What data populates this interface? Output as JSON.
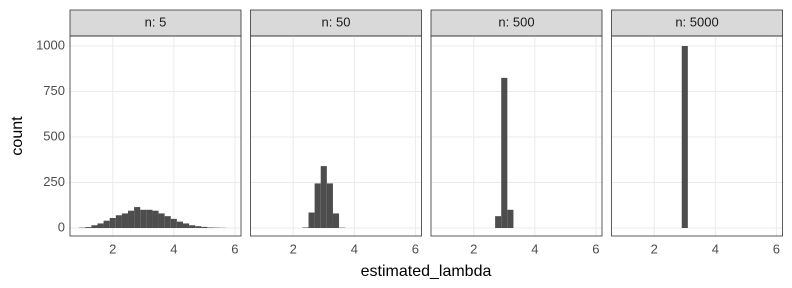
{
  "chart_data": [
    {
      "type": "histogram",
      "title": "n: 5",
      "ylabel": "count",
      "xlabel": "estimated_lambda",
      "color": "#4d4d4d",
      "grid": true,
      "bins": [
        0.7,
        0.9,
        1.1,
        1.3,
        1.5,
        1.7,
        1.9,
        2.1,
        2.3,
        2.5,
        2.7,
        2.9,
        3.1,
        3.3,
        3.5,
        3.7,
        3.9,
        4.1,
        4.3,
        4.5,
        4.7,
        4.9,
        5.1,
        5.3,
        5.5,
        5.7,
        5.9,
        6.1
      ],
      "counts": [
        0,
        2,
        5,
        15,
        25,
        40,
        55,
        70,
        80,
        95,
        115,
        100,
        100,
        95,
        80,
        65,
        50,
        35,
        25,
        15,
        10,
        6,
        3,
        2,
        1,
        0,
        0
      ],
      "xlim": [
        0.6,
        6.2
      ],
      "ylim": [
        -44,
        1055
      ],
      "xticks": [
        2,
        4,
        6
      ],
      "yticks": [
        0,
        250,
        500,
        750,
        1000
      ]
    },
    {
      "type": "histogram",
      "title": "n: 50",
      "color": "#4d4d4d",
      "grid": true,
      "bins": [
        0.7,
        0.9,
        1.1,
        1.3,
        1.5,
        1.7,
        1.9,
        2.1,
        2.3,
        2.5,
        2.7,
        2.9,
        3.1,
        3.3,
        3.5,
        3.7,
        3.9,
        4.1,
        4.3,
        4.5,
        4.7,
        4.9,
        5.1,
        5.3,
        5.5,
        5.7,
        5.9,
        6.1
      ],
      "counts": [
        0,
        0,
        0,
        0,
        0,
        0,
        0,
        0,
        3,
        85,
        245,
        340,
        245,
        80,
        2,
        0,
        0,
        0,
        0,
        0,
        0,
        0,
        0,
        0,
        0,
        0,
        0
      ],
      "xlim": [
        0.6,
        6.2
      ],
      "ylim": [
        -44,
        1055
      ],
      "xticks": [
        2,
        4,
        6
      ]
    },
    {
      "type": "histogram",
      "title": "n: 500",
      "color": "#4d4d4d",
      "grid": true,
      "bins": [
        0.7,
        0.9,
        1.1,
        1.3,
        1.5,
        1.7,
        1.9,
        2.1,
        2.3,
        2.5,
        2.7,
        2.9,
        3.1,
        3.3,
        3.5,
        3.7,
        3.9,
        4.1,
        4.3,
        4.5,
        4.7,
        4.9,
        5.1,
        5.3,
        5.5,
        5.7,
        5.9,
        6.1
      ],
      "counts": [
        0,
        0,
        0,
        0,
        0,
        0,
        0,
        0,
        0,
        0,
        65,
        825,
        100,
        0,
        0,
        0,
        0,
        0,
        0,
        0,
        0,
        0,
        0,
        0,
        0,
        0,
        0
      ],
      "xlim": [
        0.6,
        6.2
      ],
      "ylim": [
        -44,
        1055
      ],
      "xticks": [
        2,
        4,
        6
      ]
    },
    {
      "type": "histogram",
      "title": "n: 5000",
      "color": "#4d4d4d",
      "grid": true,
      "bins": [
        0.7,
        0.9,
        1.1,
        1.3,
        1.5,
        1.7,
        1.9,
        2.1,
        2.3,
        2.5,
        2.7,
        2.9,
        3.1,
        3.3,
        3.5,
        3.7,
        3.9,
        4.1,
        4.3,
        4.5,
        4.7,
        4.9,
        5.1,
        5.3,
        5.5,
        5.7,
        5.9,
        6.1
      ],
      "counts": [
        0,
        0,
        0,
        0,
        0,
        0,
        0,
        0,
        0,
        0,
        0,
        1000,
        0,
        0,
        0,
        0,
        0,
        0,
        0,
        0,
        0,
        0,
        0,
        0,
        0,
        0,
        0
      ],
      "xlim": [
        0.6,
        6.2
      ],
      "ylim": [
        -44,
        1055
      ],
      "xticks": [
        2,
        4,
        6
      ]
    }
  ]
}
